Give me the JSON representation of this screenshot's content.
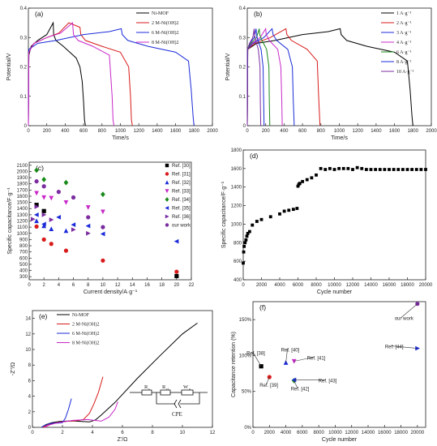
{
  "chart_data": [
    {
      "panel_label": "(a)",
      "type": "line",
      "xlabel": "Time/s",
      "ylabel": "Potential/V",
      "xlim": [
        0,
        2000
      ],
      "ylim": [
        0.0,
        0.4
      ],
      "xticks": [
        0,
        200,
        400,
        600,
        800,
        1000,
        1200,
        1400,
        1600,
        1800,
        2000
      ],
      "yticks": [
        0.0,
        0.1,
        0.2,
        0.3,
        0.4
      ],
      "legend_position": "top-right",
      "series": [
        {
          "name": "Ni-MOF",
          "color": "#000000",
          "x": [
            0,
            5,
            30,
            100,
            200,
            270,
            275,
            300,
            380,
            450,
            520,
            560,
            585,
            600,
            610,
            620
          ],
          "y": [
            0.0,
            0.24,
            0.27,
            0.29,
            0.31,
            0.35,
            0.31,
            0.29,
            0.27,
            0.25,
            0.23,
            0.2,
            0.15,
            0.08,
            0.02,
            0.0
          ]
        },
        {
          "name": "2 M-Ni(OH)2",
          "color": "#d81b1b",
          "x": [
            0,
            5,
            60,
            200,
            330,
            440,
            560,
            570,
            620,
            800,
            1000,
            1090,
            1110,
            1120,
            1130
          ],
          "y": [
            0.0,
            0.25,
            0.28,
            0.3,
            0.315,
            0.35,
            0.335,
            0.31,
            0.29,
            0.27,
            0.25,
            0.2,
            0.1,
            0.02,
            0.0
          ]
        },
        {
          "name": "6 M-Ni(OH)2",
          "color": "#1b2bd8",
          "x": [
            0,
            5,
            100,
            300,
            600,
            880,
            1010,
            1020,
            1080,
            1300,
            1600,
            1740,
            1770,
            1790,
            1800
          ],
          "y": [
            0.0,
            0.26,
            0.28,
            0.29,
            0.31,
            0.32,
            0.33,
            0.31,
            0.29,
            0.27,
            0.25,
            0.22,
            0.12,
            0.03,
            0.0
          ]
        },
        {
          "name": "8 M-Ni(OH)2",
          "color": "#c828c8",
          "x": [
            0,
            5,
            60,
            200,
            350,
            480,
            490,
            540,
            700,
            880,
            910,
            920,
            930
          ],
          "y": [
            0.0,
            0.25,
            0.28,
            0.3,
            0.315,
            0.35,
            0.31,
            0.29,
            0.27,
            0.24,
            0.1,
            0.02,
            0.0
          ]
        }
      ]
    },
    {
      "panel_label": "(b)",
      "type": "line",
      "xlabel": "Time/s",
      "ylabel": "Potential/V",
      "xlim": [
        0,
        2000
      ],
      "ylim": [
        0.0,
        0.4
      ],
      "xticks": [
        0,
        200,
        400,
        600,
        800,
        1000,
        1200,
        1400,
        1600,
        1800,
        2000
      ],
      "yticks": [
        0.0,
        0.1,
        0.2,
        0.3,
        0.4
      ],
      "legend_position": "top-right",
      "series": [
        {
          "name": "1 A·g⁻¹",
          "color": "#000000",
          "x": [
            0,
            5,
            100,
            300,
            600,
            880,
            1010,
            1020,
            1080,
            1300,
            1600,
            1740,
            1770,
            1790,
            1800
          ],
          "y": [
            0.0,
            0.26,
            0.28,
            0.29,
            0.31,
            0.32,
            0.33,
            0.31,
            0.29,
            0.27,
            0.25,
            0.22,
            0.12,
            0.03,
            0.0
          ]
        },
        {
          "name": "2 A·g⁻¹",
          "color": "#d81b1b",
          "x": [
            0,
            5,
            80,
            250,
            420,
            430,
            480,
            650,
            760,
            775,
            790
          ],
          "y": [
            0.0,
            0.26,
            0.28,
            0.3,
            0.33,
            0.31,
            0.29,
            0.26,
            0.22,
            0.1,
            0.0
          ]
        },
        {
          "name": "3 A·g⁻¹",
          "color": "#1b2bd8",
          "x": [
            0,
            4,
            60,
            180,
            270,
            280,
            320,
            440,
            490,
            500,
            510
          ],
          "y": [
            0.0,
            0.26,
            0.28,
            0.3,
            0.33,
            0.31,
            0.29,
            0.26,
            0.2,
            0.08,
            0.0
          ]
        },
        {
          "name": "4 A·g⁻¹",
          "color": "#c828c8",
          "x": [
            0,
            3,
            50,
            140,
            200,
            205,
            240,
            330,
            365,
            375,
            380
          ],
          "y": [
            0.0,
            0.26,
            0.28,
            0.3,
            0.33,
            0.31,
            0.29,
            0.26,
            0.2,
            0.08,
            0.0
          ]
        },
        {
          "name": "6 A·g⁻¹",
          "color": "#1a8a1a",
          "x": [
            0,
            3,
            40,
            100,
            130,
            135,
            160,
            210,
            235,
            240,
            245
          ],
          "y": [
            0.0,
            0.26,
            0.28,
            0.3,
            0.33,
            0.31,
            0.29,
            0.26,
            0.2,
            0.08,
            0.0
          ]
        },
        {
          "name": "8 A·g⁻¹",
          "color": "#1b2bd8",
          "x": [
            0,
            2,
            30,
            75,
            95,
            100,
            115,
            150,
            172,
            178,
            182
          ],
          "y": [
            0.0,
            0.26,
            0.28,
            0.3,
            0.33,
            0.31,
            0.29,
            0.26,
            0.2,
            0.08,
            0.0
          ]
        },
        {
          "name": "10 A·g⁻¹",
          "color": "#7b2ca0",
          "x": [
            0,
            2,
            25,
            60,
            75,
            78,
            92,
            120,
            138,
            142,
            146
          ],
          "y": [
            0.0,
            0.26,
            0.28,
            0.3,
            0.33,
            0.31,
            0.29,
            0.26,
            0.2,
            0.08,
            0.0
          ]
        }
      ]
    },
    {
      "panel_label": "(c)",
      "type": "scatter",
      "xlabel": "Current density/A·g⁻¹",
      "ylabel": "Specific capacitance/F·g⁻¹",
      "xlim": [
        0,
        22
      ],
      "ylim": [
        250,
        2150
      ],
      "xticks": [
        0,
        2,
        4,
        6,
        8,
        10,
        12,
        14,
        16,
        18,
        20,
        22
      ],
      "yticks": [
        300,
        400,
        500,
        600,
        700,
        800,
        900,
        1000,
        1100,
        1200,
        1300,
        1400,
        1500,
        1600,
        1700,
        1800,
        1900,
        2000,
        2100
      ],
      "legend_position": "top-right",
      "series": [
        {
          "name": "Ref. [30]",
          "color": "#000000",
          "marker": "square",
          "x": [
            1,
            2,
            20
          ],
          "y": [
            1460,
            1360,
            310
          ]
        },
        {
          "name": "Ref. [31]",
          "color": "#d81b1b",
          "marker": "circle",
          "x": [
            1,
            2,
            3,
            5,
            10,
            20
          ],
          "y": [
            1110,
            900,
            830,
            720,
            560,
            380
          ]
        },
        {
          "name": "Ref. [32]",
          "color": "#1b2bd8",
          "marker": "triangle-up",
          "x": [
            1,
            2,
            3,
            5
          ],
          "y": [
            1200,
            1120,
            1070,
            1040
          ]
        },
        {
          "name": "Ref. [33]",
          "color": "#c828c8",
          "marker": "triangle-down",
          "x": [
            1,
            2,
            3,
            5,
            8,
            10
          ],
          "y": [
            1650,
            1580,
            1570,
            1500,
            1420,
            1350
          ]
        },
        {
          "name": "Ref. [34]",
          "color": "#1a8a1a",
          "marker": "diamond",
          "x": [
            1,
            2,
            5,
            10
          ],
          "y": [
            2020,
            1870,
            1820,
            1630
          ]
        },
        {
          "name": "Ref. [35]",
          "color": "#1b2bd8",
          "marker": "triangle-left",
          "x": [
            1,
            2,
            4,
            6,
            8,
            10,
            20
          ],
          "y": [
            1300,
            1150,
            1260,
            1140,
            1120,
            990,
            870
          ]
        },
        {
          "name": "Ref. [36]",
          "color": "#7b2ca0",
          "marker": "triangle-right",
          "x": [
            0.5,
            1,
            2,
            3,
            6,
            8
          ],
          "y": [
            1230,
            1430,
            1300,
            1220,
            1060,
            1000
          ]
        },
        {
          "name": "our work",
          "color": "#7b2ca0",
          "marker": "circle",
          "x": [
            1,
            2,
            4,
            6,
            8,
            10
          ],
          "y": [
            1840,
            1760,
            1670,
            1580,
            1260,
            1100
          ]
        }
      ]
    },
    {
      "panel_label": "(d)",
      "type": "scatter",
      "xlabel": "Cycle number",
      "ylabel": "Specific capacitance/F·g⁻¹",
      "xlim": [
        0,
        20000
      ],
      "ylim": [
        400,
        1800
      ],
      "xticks": [
        0,
        2000,
        4000,
        6000,
        8000,
        10000,
        12000,
        14000,
        16000,
        18000,
        20000
      ],
      "yticks": [
        400,
        600,
        800,
        1000,
        1200,
        1400,
        1600,
        1800
      ],
      "series": [
        {
          "name": "",
          "color": "#000000",
          "marker": "square",
          "x": [
            0,
            50,
            100,
            200,
            300,
            400,
            500,
            700,
            1000,
            1500,
            2000,
            3000,
            4000,
            4500,
            5000,
            5500,
            5900,
            6000,
            6100,
            6200,
            6500,
            7000,
            7500,
            8000,
            8500,
            9000,
            9500,
            10000,
            10500,
            11000,
            11500,
            12000,
            12500,
            13000,
            13500,
            14000,
            14500,
            15000,
            15500,
            16000,
            16500,
            17000,
            17500,
            18000,
            18500,
            19000,
            19500,
            20000
          ],
          "y": [
            580,
            700,
            760,
            800,
            830,
            870,
            900,
            920,
            990,
            1030,
            1050,
            1080,
            1110,
            1140,
            1150,
            1160,
            1170,
            1410,
            1430,
            1440,
            1460,
            1480,
            1500,
            1530,
            1600,
            1590,
            1600,
            1590,
            1600,
            1600,
            1600,
            1590,
            1610,
            1600,
            1590,
            1590,
            1590,
            1590,
            1590,
            1590,
            1590,
            1590,
            1590,
            1590,
            1590,
            1590,
            1590,
            1590
          ]
        }
      ]
    },
    {
      "panel_label": "(e)",
      "type": "line",
      "xlabel": "Z'/Ω",
      "ylabel": "-Z''/Ω",
      "xlim": [
        0,
        12
      ],
      "ylim": [
        0,
        15
      ],
      "xticks": [
        0,
        2,
        4,
        6,
        8,
        10,
        12
      ],
      "yticks": [
        0,
        2,
        4,
        6,
        8,
        10,
        12,
        14
      ],
      "legend_position": "top-left",
      "circuit_labels": {
        "r1": "R",
        "r1_sub": "s",
        "r2": "R",
        "r2_sub": "ct",
        "w": "W",
        "w_sub": "o",
        "cpe": "CPE"
      },
      "series": [
        {
          "name": "Ni-MOF",
          "color": "#000000",
          "x": [
            0.6,
            0.9,
            1.3,
            1.8,
            2.3,
            2.8,
            3.3,
            3.8,
            4.2,
            4.6,
            5.5,
            7.0,
            8.5,
            10.0,
            11.0
          ],
          "y": [
            0.0,
            0.35,
            0.6,
            0.75,
            0.8,
            0.8,
            0.75,
            0.7,
            0.95,
            1.6,
            3.2,
            6.3,
            9.2,
            12.0,
            13.4
          ]
        },
        {
          "name": "2 M-Ni(OH)2",
          "color": "#d81b1b",
          "x": [
            0.7,
            1.0,
            1.5,
            2.0,
            2.5,
            3.0,
            3.4,
            3.8,
            4.1,
            4.4,
            4.7
          ],
          "y": [
            0.0,
            0.3,
            0.55,
            0.7,
            0.8,
            0.85,
            1.0,
            1.8,
            3.0,
            4.5,
            6.5
          ]
        },
        {
          "name": "6 M-Ni(OH)2",
          "color": "#1b2bd8",
          "x": [
            0.6,
            0.8,
            1.1,
            1.4,
            1.7,
            2.0,
            2.2,
            2.4,
            2.6
          ],
          "y": [
            0.0,
            0.25,
            0.45,
            0.55,
            0.55,
            0.6,
            1.2,
            2.3,
            3.7
          ]
        },
        {
          "name": "8 M-Ni(OH)2",
          "color": "#c828c8",
          "x": [
            0.8,
            1.2,
            1.7,
            2.2,
            2.7,
            3.2,
            3.7,
            4.1,
            4.6,
            5.1,
            5.5,
            5.7
          ],
          "y": [
            0.0,
            0.35,
            0.6,
            0.75,
            0.9,
            0.95,
            1.0,
            0.9,
            0.8,
            1.3,
            2.3,
            3.3
          ]
        }
      ]
    },
    {
      "panel_label": "(f)",
      "type": "scatter",
      "xlabel": "Cycle number",
      "ylabel": "Capacitance retention (%)",
      "xlim": [
        0,
        21000
      ],
      "ylim": [
        0,
        175
      ],
      "xticks": [
        0,
        2000,
        4000,
        6000,
        8000,
        10000,
        12000,
        14000,
        16000,
        18000,
        20000
      ],
      "yticks": [
        0,
        50,
        100,
        150
      ],
      "ytick_labels": [
        "0%",
        "50%",
        "100%",
        "150%"
      ],
      "points": [
        {
          "label": "Ref. [38]",
          "x": 1000,
          "y": 85,
          "color": "#000000",
          "marker": "square"
        },
        {
          "label": "Ref. [39]",
          "x": 2000,
          "y": 70,
          "color": "#d81b1b",
          "marker": "circle"
        },
        {
          "label": "Ref. [40]",
          "x": 4000,
          "y": 90,
          "color": "#1b2bd8",
          "marker": "triangle-up"
        },
        {
          "label": "Ref. [41]",
          "x": 5000,
          "y": 92,
          "color": "#c828c8",
          "marker": "triangle-down"
        },
        {
          "label": "Ref. [42]",
          "x": 5000,
          "y": 65,
          "color": "#1a8a1a",
          "marker": "diamond"
        },
        {
          "label": "Ref. [43]",
          "x": 5000,
          "y": 66,
          "color": "#1b2bd8",
          "marker": "triangle-left"
        },
        {
          "label": "Ref. [44]",
          "x": 20000,
          "y": 110,
          "color": "#1b2bd8",
          "marker": "triangle-right"
        },
        {
          "label": "our work",
          "x": 20000,
          "y": 172,
          "color": "#7b2ca0",
          "marker": "circle"
        }
      ]
    }
  ]
}
